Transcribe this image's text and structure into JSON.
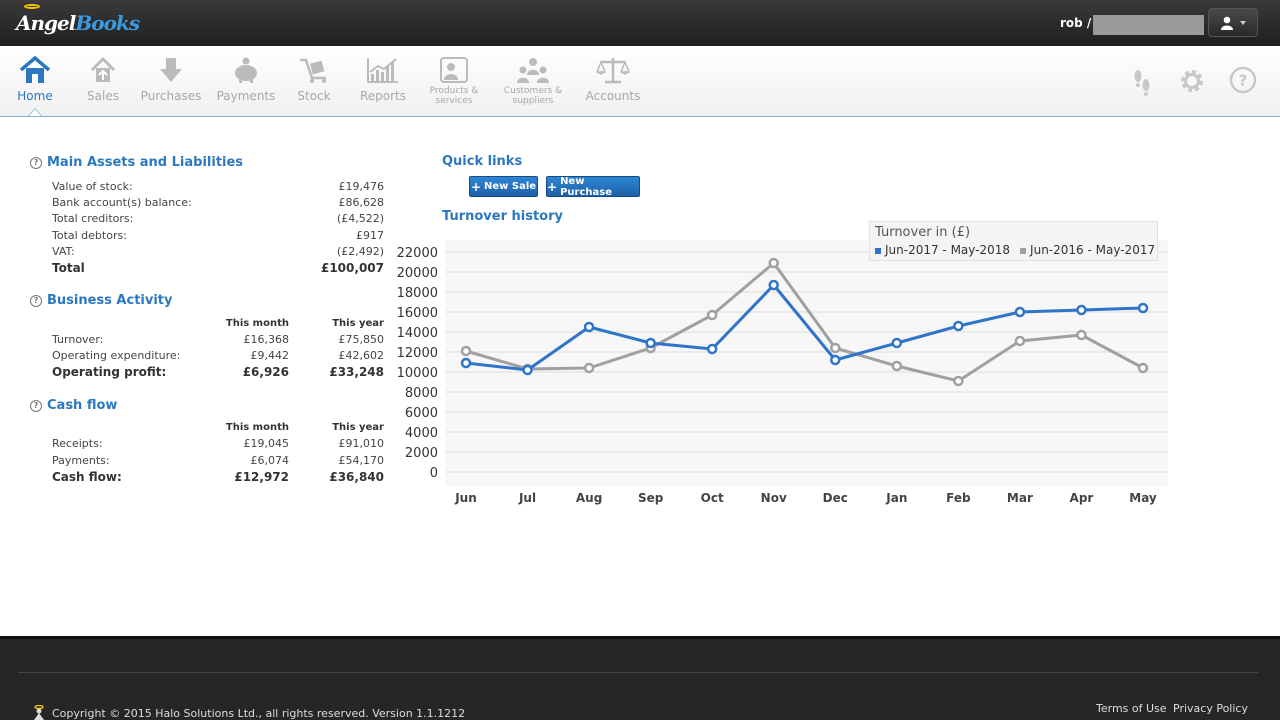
{
  "header": {
    "logo_part1": "Angel",
    "logo_part2": "Books",
    "user": "rob /"
  },
  "nav": {
    "items": [
      {
        "label": "Home",
        "icon": "home-icon",
        "active": true
      },
      {
        "label": "Sales",
        "icon": "sales-icon"
      },
      {
        "label": "Purchases",
        "icon": "purchases-icon"
      },
      {
        "label": "Payments",
        "icon": "piggy-bank-icon"
      },
      {
        "label": "Stock",
        "icon": "trolley-icon"
      },
      {
        "label": "Reports",
        "icon": "chart-icon"
      },
      {
        "label": "Products & services",
        "label_line1": "Products &",
        "label_line2": "services",
        "icon": "products-icon"
      },
      {
        "label": "Customers & suppliers",
        "label_line1": "Customers &",
        "label_line2": "suppliers",
        "icon": "people-icon"
      },
      {
        "label": "Accounts",
        "icon": "scales-icon"
      }
    ],
    "right_icons": [
      "footprints-icon",
      "gear-icon",
      "help-icon"
    ]
  },
  "assets": {
    "title": "Main Assets and Liabilities",
    "rows": [
      {
        "label": "Value of stock:",
        "value": "£19,476"
      },
      {
        "label": "Bank account(s) balance:",
        "value": "£86,628"
      },
      {
        "label": "Total creditors:",
        "value": "(£4,522)"
      },
      {
        "label": "Total debtors:",
        "value": "£917"
      },
      {
        "label": "VAT:",
        "value": "(£2,492)"
      }
    ],
    "total_label": "Total",
    "total_value": "£100,007"
  },
  "activity": {
    "title": "Business Activity",
    "col1": "This month",
    "col2": "This year",
    "rows": [
      {
        "label": "Turnover:",
        "month": "£16,368",
        "year": "£75,850"
      },
      {
        "label": "Operating expenditure:",
        "month": "£9,442",
        "year": "£42,602"
      }
    ],
    "total_label": "Operating profit:",
    "total_month": "£6,926",
    "total_year": "£33,248"
  },
  "cashflow": {
    "title": "Cash flow",
    "col1": "This month",
    "col2": "This year",
    "rows": [
      {
        "label": "Receipts:",
        "month": "£19,045",
        "year": "£91,010"
      },
      {
        "label": "Payments:",
        "month": "£6,074",
        "year": "£54,170"
      }
    ],
    "total_label": "Cash flow:",
    "total_month": "£12,972",
    "total_year": "£36,840"
  },
  "quick_links": {
    "title": "Quick links",
    "new_sale": "New Sale",
    "new_purchase": "New Purchase"
  },
  "turnover_title": "Turnover history",
  "chart_data": {
    "type": "line",
    "title": "Turnover in (£)",
    "categories": [
      "Jun",
      "Jul",
      "Aug",
      "Sep",
      "Oct",
      "Nov",
      "Dec",
      "Jan",
      "Feb",
      "Mar",
      "Apr",
      "May"
    ],
    "ylim": [
      0,
      22000
    ],
    "yticks": [
      0,
      2000,
      4000,
      6000,
      8000,
      10000,
      12000,
      14000,
      16000,
      18000,
      20000,
      22000
    ],
    "legend": "top-right",
    "series": [
      {
        "name": "Jun-2017 - May-2018",
        "color": "#2f74c9",
        "values": [
          10900,
          10200,
          14500,
          12900,
          12300,
          18700,
          11200,
          12900,
          14600,
          16000,
          16200,
          16400
        ]
      },
      {
        "name": "Jun-2016 - May-2017",
        "color": "#a0a0a0",
        "values": [
          12100,
          10300,
          10400,
          12400,
          15700,
          20900,
          12400,
          10600,
          9100,
          13100,
          13700,
          10400
        ]
      }
    ]
  },
  "footer": {
    "copyright": "Copyright © 2015 Halo Solutions Ltd., all rights reserved. Version 1.1.1212",
    "terms": "Terms of Use",
    "privacy": "Privacy Policy"
  }
}
